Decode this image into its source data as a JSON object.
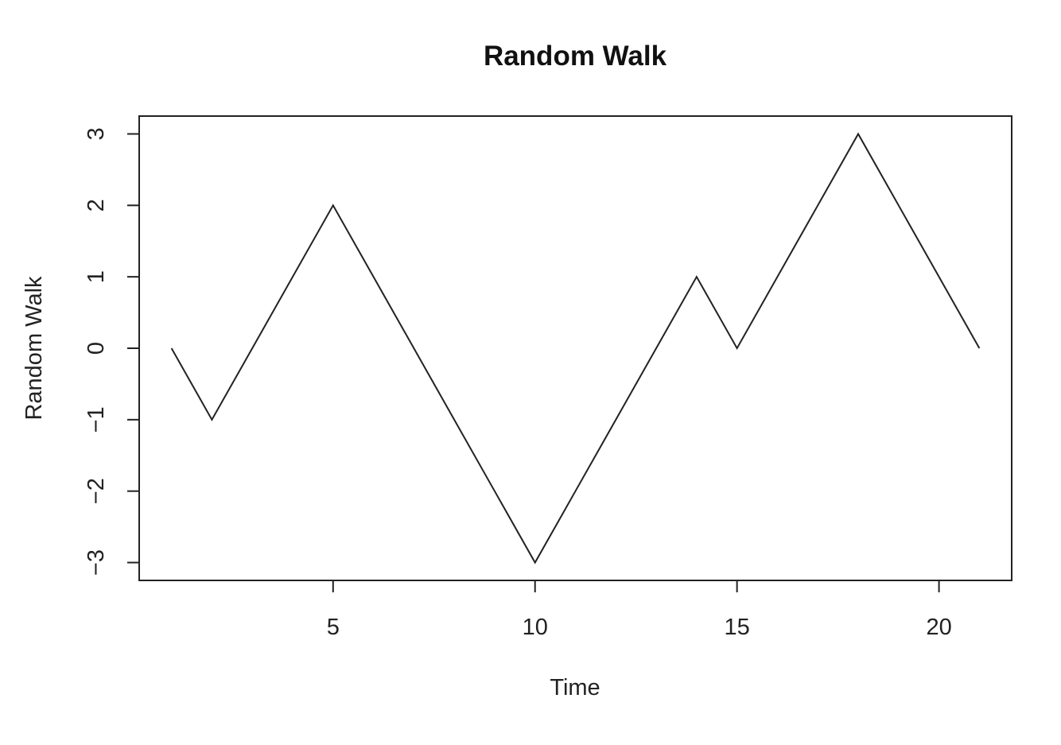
{
  "chart_data": {
    "type": "line",
    "title": "Random Walk",
    "xlabel": "Time",
    "ylabel": "Random Walk",
    "xlim": [
      0.2,
      21.8
    ],
    "ylim": [
      -3.25,
      3.25
    ],
    "x_ticks": [
      5,
      10,
      15,
      20
    ],
    "x_tick_labels": [
      "5",
      "10",
      "15",
      "20"
    ],
    "y_ticks": [
      -3,
      -2,
      -1,
      0,
      1,
      2,
      3
    ],
    "y_tick_labels": [
      "−3",
      "−2",
      "−1",
      "0",
      "1",
      "2",
      "3"
    ],
    "grid": false,
    "legend": "none",
    "x": [
      1,
      2,
      3,
      4,
      5,
      6,
      7,
      8,
      9,
      10,
      11,
      12,
      13,
      14,
      15,
      16,
      17,
      18,
      19,
      20,
      21
    ],
    "series": [
      {
        "values": [
          0,
          -1,
          0,
          1,
          2,
          1,
          0,
          -1,
          -2,
          -3,
          -2,
          -1,
          0,
          1,
          0,
          1,
          2,
          3,
          2,
          1,
          0
        ],
        "color": "#222222"
      }
    ]
  }
}
